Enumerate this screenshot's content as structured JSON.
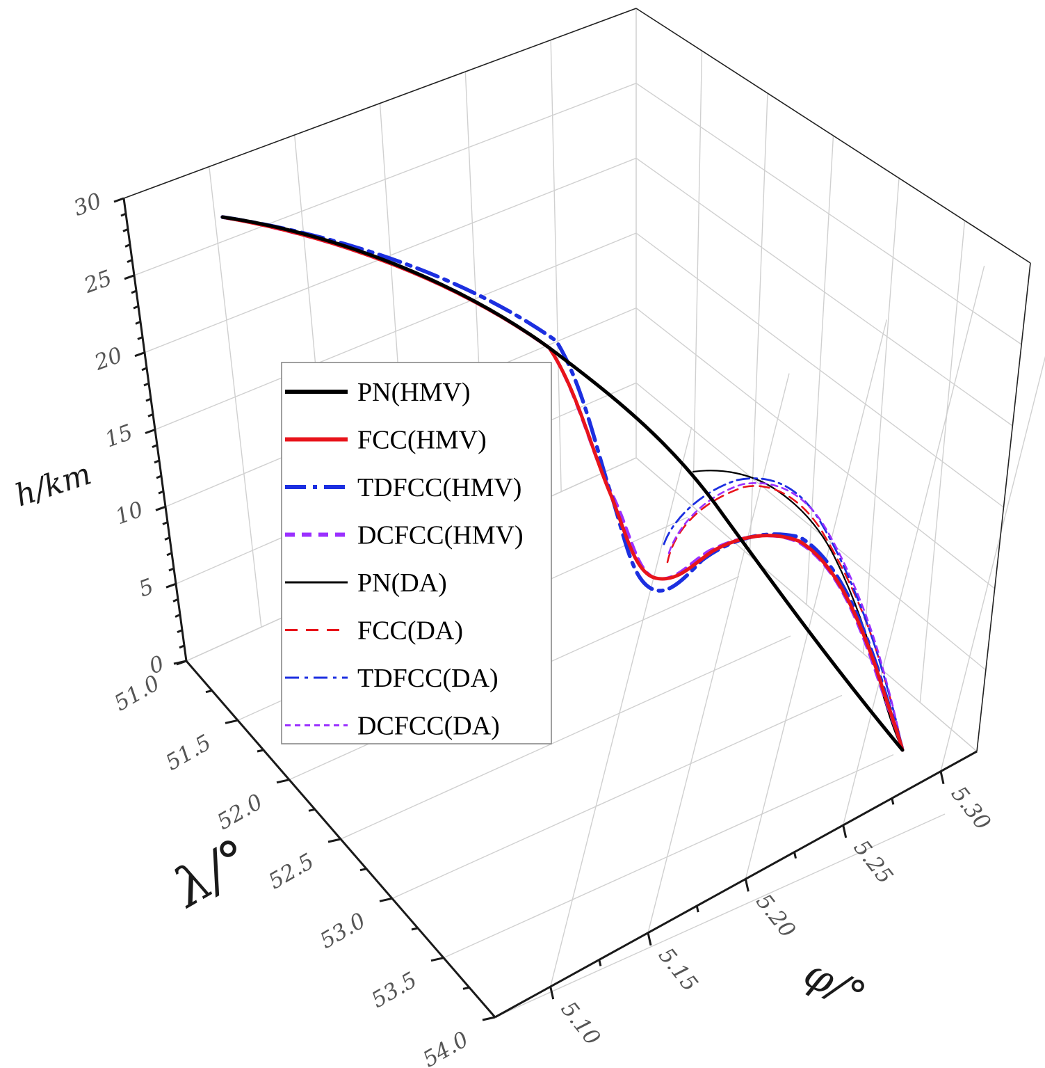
{
  "chart_data": {
    "type": "line",
    "projection": "3d",
    "title": "",
    "axes": {
      "x": {
        "label": "φ/°",
        "ticks": [
          "5.10",
          "5.15",
          "5.20",
          "5.25",
          "5.30"
        ],
        "range": [
          5.1,
          5.3
        ]
      },
      "y": {
        "label": "λ/°",
        "ticks": [
          "51.0",
          "51.5",
          "52.0",
          "52.5",
          "53.0",
          "53.5",
          "54.0"
        ],
        "range": [
          51.0,
          54.0
        ]
      },
      "z": {
        "label": "h/km",
        "ticks": [
          "0",
          "5",
          "10",
          "15",
          "20",
          "25",
          "30"
        ],
        "range": [
          0,
          30
        ]
      }
    },
    "grid": true,
    "legend_position": "center-left",
    "legend": [
      {
        "name": "PN(HMV)",
        "color": "#000000",
        "style": "solid",
        "width": "thick"
      },
      {
        "name": "FCC(HMV)",
        "color": "#e8141b",
        "style": "solid",
        "width": "thick"
      },
      {
        "name": "TDFCC(HMV)",
        "color": "#1c2fe0",
        "style": "dashdot",
        "width": "thick"
      },
      {
        "name": "DCFCC(HMV)",
        "color": "#9b30ff",
        "style": "dash",
        "width": "thick"
      },
      {
        "name": "PN(DA)",
        "color": "#000000",
        "style": "solid",
        "width": "thin"
      },
      {
        "name": "FCC(DA)",
        "color": "#e8141b",
        "style": "dash",
        "width": "thin"
      },
      {
        "name": "TDFCC(DA)",
        "color": "#1c2fe0",
        "style": "dashdot",
        "width": "thin"
      },
      {
        "name": "DCFCC(DA)",
        "color": "#9b30ff",
        "style": "shortdash",
        "width": "thin"
      }
    ],
    "trajectory_notes": "All trajectories start near (λ=51.0, φ≈5.14, h≈28.5 km) and terminate at h=0 near φ≈5.28. PN descends smoothly; FCC/TDFCC/DCFCC dive to ≈5 km then climb to ≈10–13 km before descending to the target."
  }
}
